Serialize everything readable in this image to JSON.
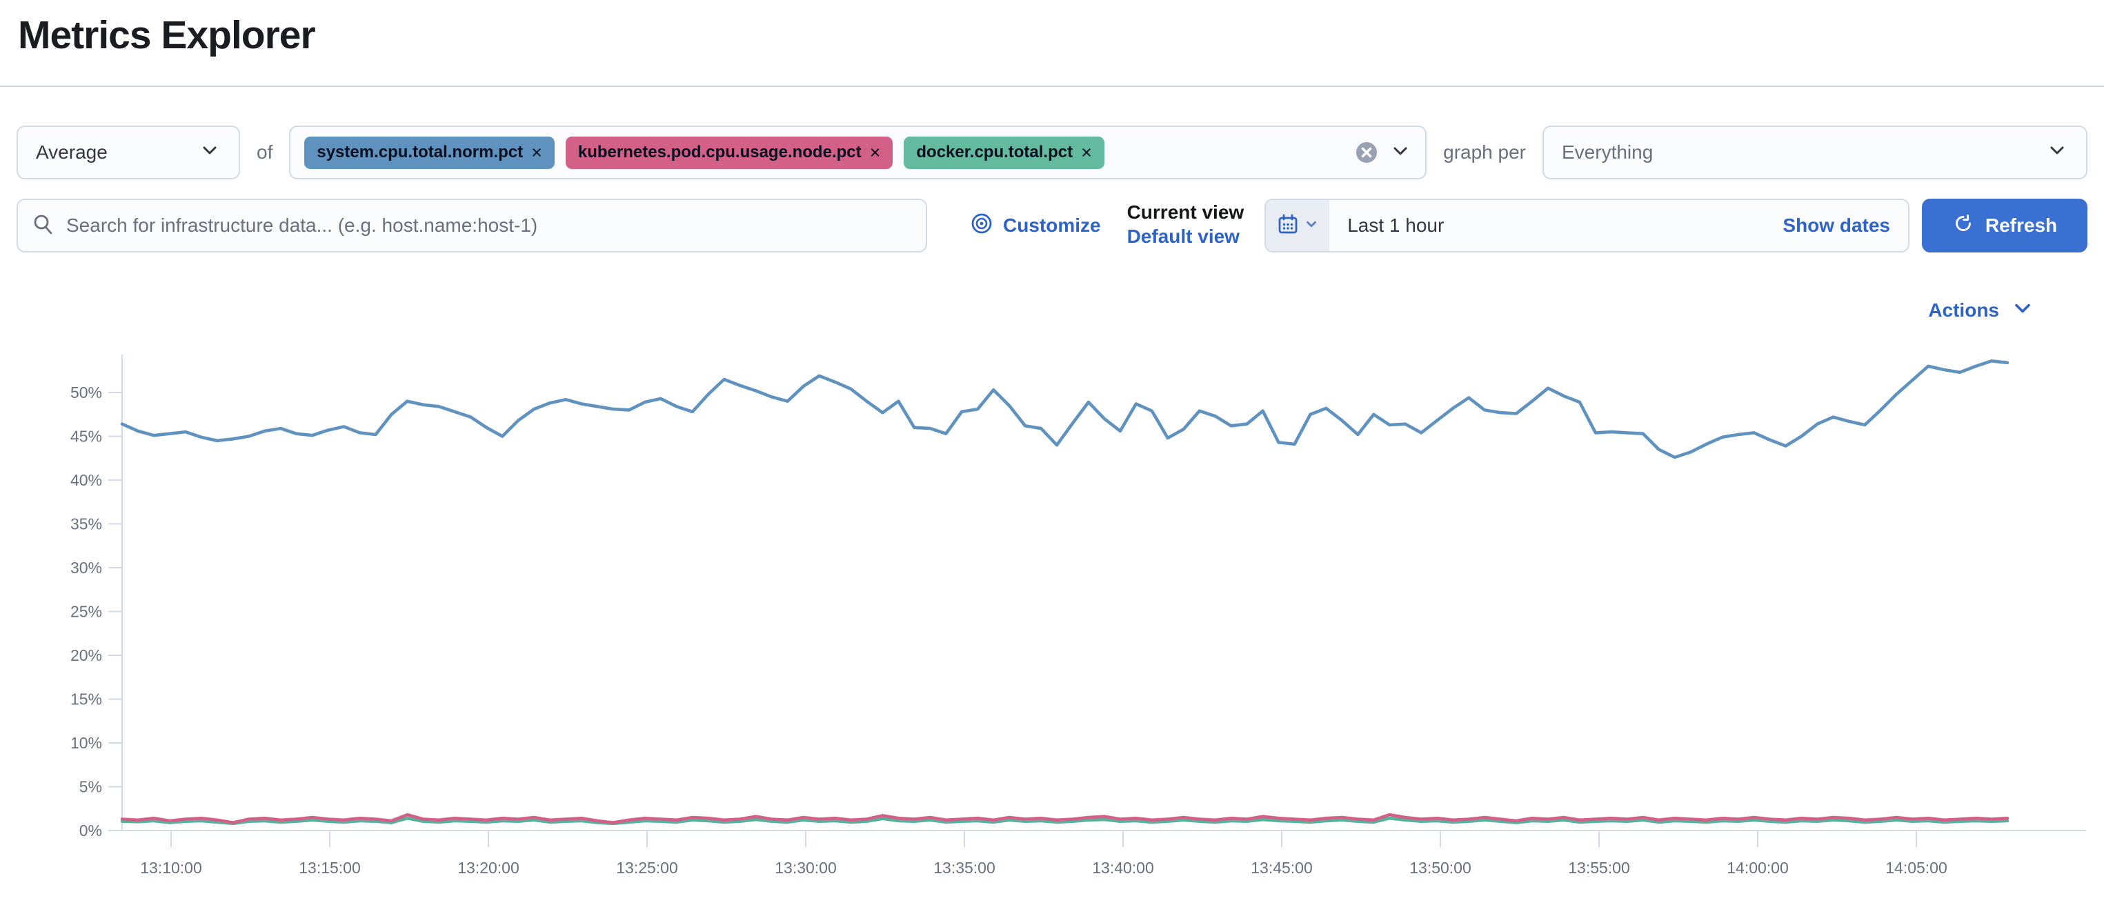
{
  "page": {
    "title": "Metrics Explorer"
  },
  "aggregation_row": {
    "aggregation_select": {
      "value": "Average"
    },
    "of_label": "of",
    "metric_badges": [
      {
        "label": "system.cpu.total.norm.pct",
        "remove_icon": "×",
        "color": "#6092C0"
      },
      {
        "label": "kubernetes.pod.cpu.usage.node.pct",
        "remove_icon": "×",
        "color": "#D36086"
      },
      {
        "label": "docker.cpu.total.pct",
        "remove_icon": "×",
        "color": "#63BA9F"
      }
    ],
    "graph_per_label": "graph per",
    "group_by_select": {
      "value": "Everything"
    }
  },
  "toolbar_row": {
    "search": {
      "placeholder": "Search for infrastructure data... (e.g. host.name:host-1)"
    },
    "customize_label": "Customize",
    "view_picker": {
      "title": "Current view",
      "selected_view": "Default view"
    },
    "time_picker": {
      "value": "Last 1 hour",
      "show_dates_label": "Show dates"
    },
    "refresh_label": "Refresh"
  },
  "chart_header": {
    "actions_label": "Actions"
  },
  "chart_data": {
    "type": "line",
    "title": "",
    "xlabel": "",
    "ylabel": "",
    "y_unit": "%",
    "ylim": [
      0,
      54
    ],
    "x_start": "13:08:30",
    "x_interval_seconds": 30,
    "grid": "axis-and-ticks-only",
    "legend": "none",
    "y_tick_labels": [
      "0%",
      "5%",
      "10%",
      "15%",
      "20%",
      "25%",
      "30%",
      "35%",
      "40%",
      "45%",
      "50%"
    ],
    "x_tick_labels": [
      "13:10:00",
      "13:15:00",
      "13:20:00",
      "13:25:00",
      "13:30:00",
      "13:35:00",
      "13:40:00",
      "13:45:00",
      "13:50:00",
      "13:55:00",
      "14:00:00",
      "14:05:00"
    ],
    "series": [
      {
        "name": "docker.cpu.total.pct",
        "color": "#54B399",
        "values": [
          1.05,
          1.0,
          1.1,
          0.9,
          1.05,
          1.1,
          0.95,
          0.8,
          1.05,
          1.1,
          0.95,
          1.05,
          1.2,
          1.05,
          0.95,
          1.1,
          1.05,
          0.9,
          1.4,
          1.05,
          0.95,
          1.1,
          1.05,
          0.95,
          1.1,
          1.05,
          1.2,
          0.95,
          1.05,
          1.1,
          0.9,
          0.8,
          0.95,
          1.1,
          1.05,
          0.95,
          1.2,
          1.1,
          0.95,
          1.05,
          1.25,
          1.05,
          0.95,
          1.2,
          1.05,
          1.1,
          0.95,
          1.05,
          1.35,
          1.1,
          1.05,
          1.2,
          0.95,
          1.05,
          1.1,
          0.95,
          1.2,
          1.05,
          1.1,
          0.95,
          1.05,
          1.2,
          1.25,
          1.05,
          1.1,
          0.95,
          1.05,
          1.2,
          1.05,
          0.95,
          1.1,
          1.05,
          1.25,
          1.1,
          1.05,
          0.95,
          1.1,
          1.2,
          1.05,
          0.95,
          1.4,
          1.2,
          1.05,
          1.1,
          0.95,
          1.05,
          1.2,
          1.05,
          0.9,
          1.1,
          1.05,
          1.2,
          0.95,
          1.05,
          1.1,
          1.05,
          1.2,
          0.95,
          1.1,
          1.05,
          0.95,
          1.1,
          1.05,
          1.2,
          1.05,
          0.95,
          1.1,
          1.05,
          1.2,
          1.1,
          0.95,
          1.05,
          1.2,
          1.05,
          1.1,
          0.95,
          1.05,
          1.1,
          1.05,
          1.1
        ]
      },
      {
        "name": "kubernetes.pod.cpu.usage.node.pct",
        "color": "#D36086",
        "values": [
          1.3,
          1.2,
          1.4,
          1.1,
          1.3,
          1.4,
          1.2,
          0.9,
          1.3,
          1.4,
          1.2,
          1.3,
          1.5,
          1.3,
          1.2,
          1.4,
          1.3,
          1.1,
          1.8,
          1.3,
          1.2,
          1.4,
          1.3,
          1.2,
          1.4,
          1.3,
          1.5,
          1.2,
          1.3,
          1.4,
          1.1,
          0.9,
          1.2,
          1.4,
          1.3,
          1.2,
          1.5,
          1.4,
          1.2,
          1.3,
          1.6,
          1.3,
          1.2,
          1.5,
          1.3,
          1.4,
          1.2,
          1.3,
          1.7,
          1.4,
          1.3,
          1.5,
          1.2,
          1.3,
          1.4,
          1.2,
          1.5,
          1.3,
          1.4,
          1.2,
          1.3,
          1.5,
          1.6,
          1.3,
          1.4,
          1.2,
          1.3,
          1.5,
          1.3,
          1.2,
          1.4,
          1.3,
          1.6,
          1.4,
          1.3,
          1.2,
          1.4,
          1.5,
          1.3,
          1.2,
          1.8,
          1.5,
          1.3,
          1.4,
          1.2,
          1.3,
          1.5,
          1.3,
          1.1,
          1.4,
          1.3,
          1.5,
          1.2,
          1.3,
          1.4,
          1.3,
          1.5,
          1.2,
          1.4,
          1.3,
          1.2,
          1.4,
          1.3,
          1.5,
          1.3,
          1.2,
          1.4,
          1.3,
          1.5,
          1.4,
          1.2,
          1.3,
          1.5,
          1.3,
          1.4,
          1.2,
          1.3,
          1.4,
          1.3,
          1.4
        ]
      },
      {
        "name": "system.cpu.total.norm.pct",
        "color": "#6092C0",
        "values": [
          46.4,
          45.6,
          45.1,
          45.3,
          45.5,
          44.9,
          44.5,
          44.7,
          45.0,
          45.6,
          45.9,
          45.3,
          45.1,
          45.7,
          46.1,
          45.4,
          45.2,
          47.5,
          49.0,
          48.6,
          48.4,
          47.8,
          47.2,
          46.0,
          45.0,
          46.8,
          48.1,
          48.8,
          49.2,
          48.7,
          48.4,
          48.1,
          48.0,
          48.9,
          49.3,
          48.4,
          47.8,
          49.8,
          51.5,
          50.8,
          50.2,
          49.5,
          49.0,
          50.7,
          51.9,
          51.2,
          50.4,
          49.0,
          47.7,
          49.0,
          46.0,
          45.9,
          45.3,
          47.8,
          48.1,
          50.3,
          48.5,
          46.2,
          45.9,
          44.0,
          46.5,
          48.9,
          47.0,
          45.6,
          48.7,
          47.9,
          44.8,
          45.8,
          47.9,
          47.3,
          46.2,
          46.4,
          47.9,
          44.3,
          44.1,
          47.5,
          48.2,
          46.8,
          45.2,
          47.5,
          46.3,
          46.4,
          45.4,
          46.8,
          48.2,
          49.4,
          48.0,
          47.7,
          47.6,
          49.0,
          50.5,
          49.6,
          48.9,
          45.4,
          45.5,
          45.4,
          45.3,
          43.5,
          42.6,
          43.2,
          44.1,
          44.9,
          45.2,
          45.4,
          44.6,
          43.9,
          45.0,
          46.4,
          47.2,
          46.7,
          46.3,
          48.0,
          49.8,
          51.4,
          53.0,
          52.6,
          52.3,
          53.0,
          53.6,
          53.4
        ]
      }
    ]
  }
}
